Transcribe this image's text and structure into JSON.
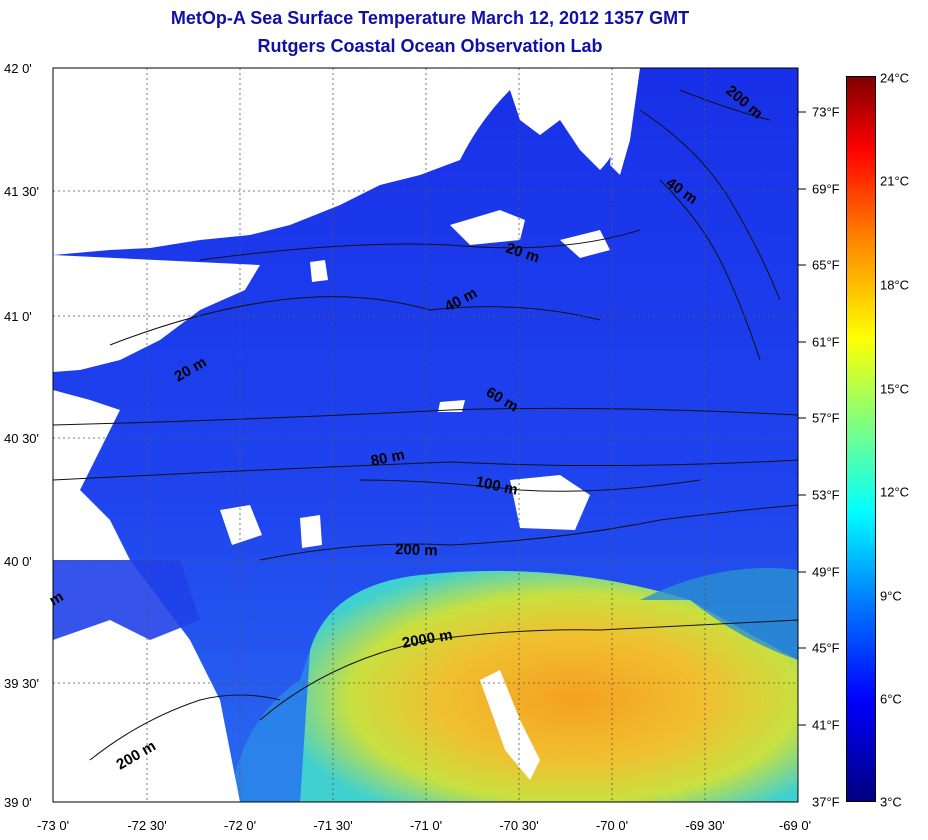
{
  "title": {
    "line1": "MetOp-A Sea Surface Temperature March 12, 2012 1357 GMT",
    "line2": "Rutgers Coastal Ocean Observation Lab"
  },
  "lat_labels": [
    "42 0'",
    "41 30'",
    "41 0'",
    "40 30'",
    "40 0'",
    "39 30'",
    "39 0'"
  ],
  "lon_labels": [
    "-73 0'",
    "-72 30'",
    "-72 0'",
    "-71 30'",
    "-71 0'",
    "-70 30'",
    "-70 0'",
    "-69 30'",
    "-69 0'"
  ],
  "fahrenheit_labels": [
    "73°F",
    "69°F",
    "65°F",
    "61°F",
    "57°F",
    "53°F",
    "49°F",
    "45°F",
    "41°F",
    "37°F"
  ],
  "celsius_labels": [
    "24°C",
    "21°C",
    "18°C",
    "15°C",
    "12°C",
    "9°C",
    "6°C",
    "3°C"
  ],
  "contour_labels": [
    "200 m",
    "40 m",
    "20 m",
    "40 m",
    "60 m",
    "80 m",
    "100 m",
    "200 m",
    "2000 m",
    "20 m",
    "m",
    "200 m"
  ],
  "colors": {
    "title": "#1010a8",
    "land": "#ffffff",
    "cold_water": "#1a3cf0",
    "warm_water": "#f0c020",
    "cloud": "#ffffff"
  },
  "colorbar_range_c": [
    3,
    24
  ],
  "colorbar_range_f": [
    37,
    75
  ]
}
